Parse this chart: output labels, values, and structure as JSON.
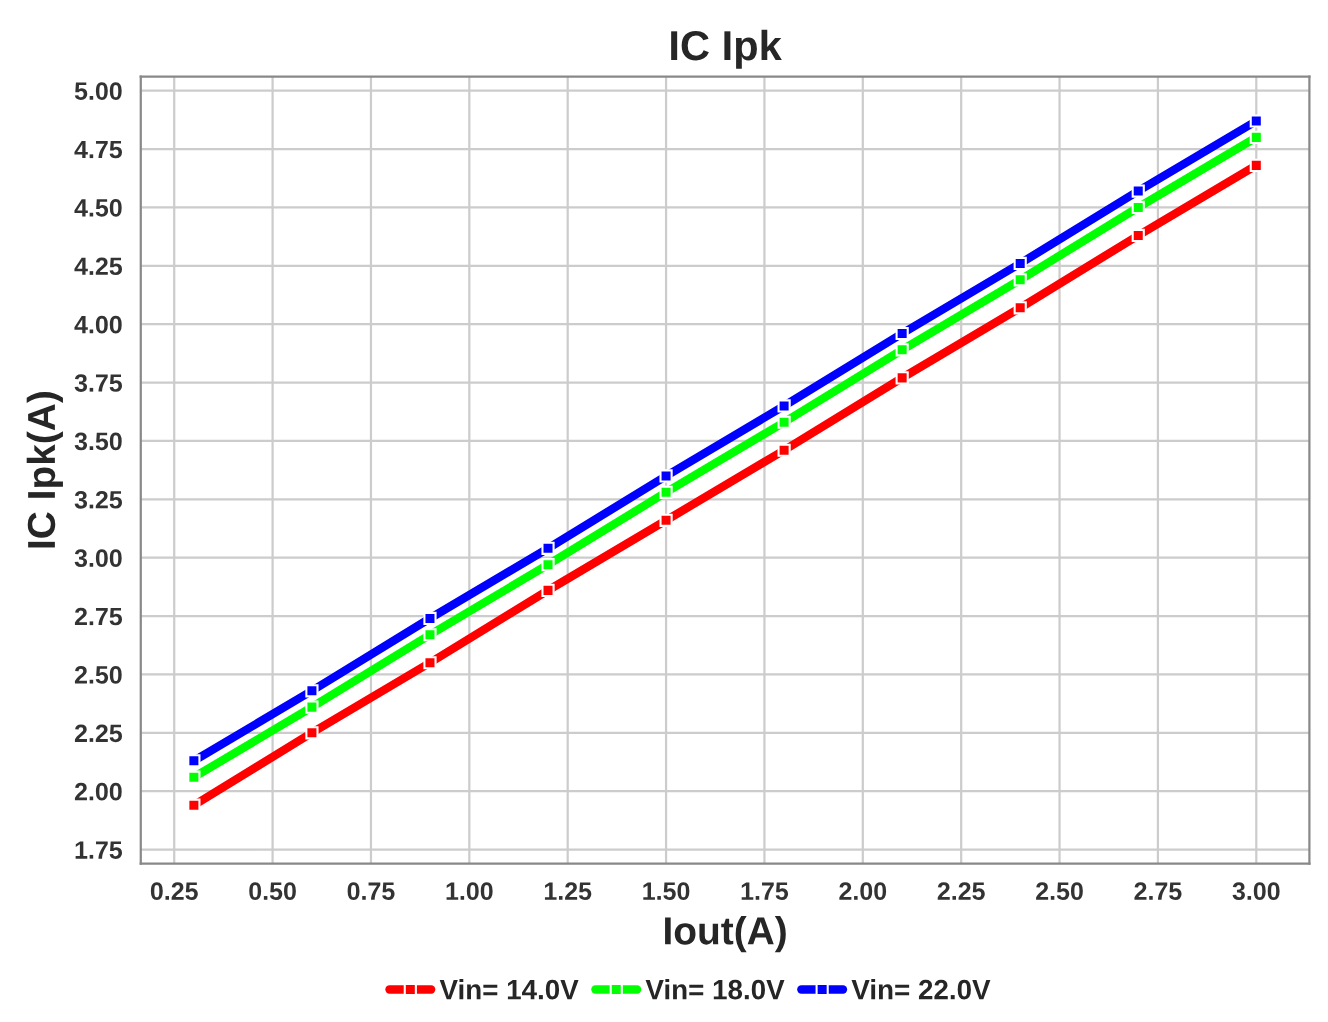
{
  "chart_data": {
    "type": "line",
    "title": "IC Ipk",
    "xlabel": "Iout(A)",
    "ylabel": "IC Ipk(A)",
    "x": [
      0.3,
      0.6,
      0.9,
      1.2,
      1.5,
      1.8,
      2.1,
      2.4,
      2.7,
      3.0
    ],
    "series": [
      {
        "name": "Vin= 14.0V",
        "color": "#ff0000",
        "values": [
          1.94,
          2.25,
          2.55,
          2.86,
          3.16,
          3.46,
          3.77,
          4.07,
          4.38,
          4.68
        ]
      },
      {
        "name": "Vin= 18.0V",
        "color": "#00ff00",
        "values": [
          2.06,
          2.36,
          2.67,
          2.97,
          3.28,
          3.58,
          3.89,
          4.19,
          4.5,
          4.8
        ]
      },
      {
        "name": "Vin= 22.0V",
        "color": "#0000ff",
        "values": [
          2.13,
          2.43,
          2.74,
          3.04,
          3.35,
          3.65,
          3.96,
          4.26,
          4.57,
          4.87
        ]
      }
    ],
    "xlim": [
      0.165,
      3.135
    ],
    "xticks": [
      {
        "value": 0.25,
        "label": "0.25"
      },
      {
        "value": 0.5,
        "label": "0.50"
      },
      {
        "value": 0.75,
        "label": "0.75"
      },
      {
        "value": 1.0,
        "label": "1.00"
      },
      {
        "value": 1.25,
        "label": "1.25"
      },
      {
        "value": 1.5,
        "label": "1.50"
      },
      {
        "value": 1.75,
        "label": "1.75"
      },
      {
        "value": 2.0,
        "label": "2.00"
      },
      {
        "value": 2.25,
        "label": "2.25"
      },
      {
        "value": 2.5,
        "label": "2.50"
      },
      {
        "value": 2.75,
        "label": "2.75"
      },
      {
        "value": 3.0,
        "label": "3.00"
      }
    ],
    "ylim": [
      1.69,
      5.06
    ],
    "yticks": [
      {
        "value": 1.75,
        "label": "1.75"
      },
      {
        "value": 2.0,
        "label": "2.00"
      },
      {
        "value": 2.25,
        "label": "2.25"
      },
      {
        "value": 2.5,
        "label": "2.50"
      },
      {
        "value": 2.75,
        "label": "2.75"
      },
      {
        "value": 3.0,
        "label": "3.00"
      },
      {
        "value": 3.25,
        "label": "3.25"
      },
      {
        "value": 3.5,
        "label": "3.50"
      },
      {
        "value": 3.75,
        "label": "3.75"
      },
      {
        "value": 4.0,
        "label": "4.00"
      },
      {
        "value": 4.25,
        "label": "4.25"
      },
      {
        "value": 4.5,
        "label": "4.50"
      },
      {
        "value": 4.75,
        "label": "4.75"
      },
      {
        "value": 5.0,
        "label": "5.00"
      }
    ],
    "grid": true,
    "legend": "bottom",
    "marker": "square",
    "line_style": "solid"
  }
}
